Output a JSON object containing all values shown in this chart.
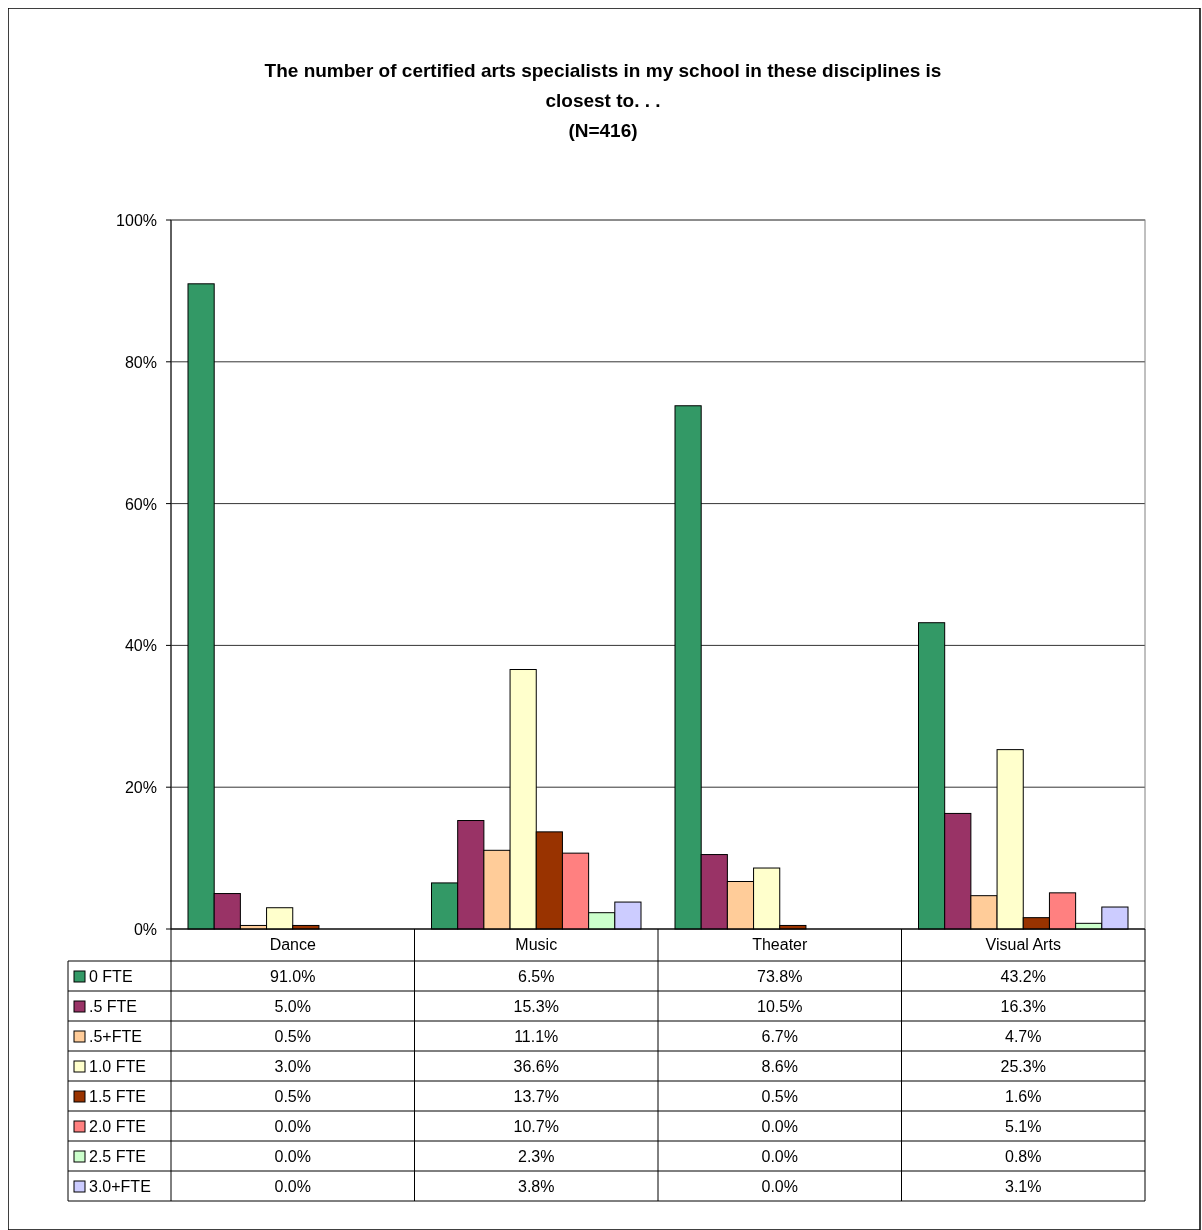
{
  "chart_data": {
    "type": "bar",
    "title": "The number of certified arts specialists in my school in these disciplines is closest to. . .",
    "subtitle": "(N=416)",
    "categories": [
      "Dance",
      "Music",
      "Theater",
      "Visual Arts"
    ],
    "series": [
      {
        "name": "0 FTE",
        "color": "#339966",
        "values": [
          91.0,
          6.5,
          73.8,
          43.2
        ],
        "value_labels": [
          "91.0%",
          "6.5%",
          "73.8%",
          "43.2%"
        ]
      },
      {
        "name": ".5 FTE",
        "color": "#993366",
        "values": [
          5.0,
          15.3,
          10.5,
          16.3
        ],
        "value_labels": [
          "5.0%",
          "15.3%",
          "10.5%",
          "16.3%"
        ]
      },
      {
        "name": ".5+FTE",
        "color": "#ffcc99",
        "values": [
          0.5,
          11.1,
          6.7,
          4.7
        ],
        "value_labels": [
          "0.5%",
          "11.1%",
          "6.7%",
          "4.7%"
        ]
      },
      {
        "name": "1.0 FTE",
        "color": "#ffffcc",
        "values": [
          3.0,
          36.6,
          8.6,
          25.3
        ],
        "value_labels": [
          "3.0%",
          "36.6%",
          "8.6%",
          "25.3%"
        ]
      },
      {
        "name": "1.5 FTE",
        "color": "#993300",
        "values": [
          0.5,
          13.7,
          0.5,
          1.6
        ],
        "value_labels": [
          "0.5%",
          "13.7%",
          "0.5%",
          "1.6%"
        ]
      },
      {
        "name": "2.0 FTE",
        "color": "#ff8080",
        "values": [
          0.0,
          10.7,
          0.0,
          5.1
        ],
        "value_labels": [
          "0.0%",
          "10.7%",
          "0.0%",
          "5.1%"
        ]
      },
      {
        "name": "2.5 FTE",
        "color": "#ccffcc",
        "values": [
          0.0,
          2.3,
          0.0,
          0.8
        ],
        "value_labels": [
          "0.0%",
          "2.3%",
          "0.0%",
          "0.8%"
        ]
      },
      {
        "name": "3.0+FTE",
        "color": "#ccccff",
        "values": [
          0.0,
          3.8,
          0.0,
          3.1
        ],
        "value_labels": [
          "0.0%",
          "3.8%",
          "0.0%",
          "3.1%"
        ]
      }
    ],
    "ylim": [
      0,
      100
    ],
    "yticks": [
      {
        "value": 0,
        "label": "0%"
      },
      {
        "value": 20,
        "label": "20%"
      },
      {
        "value": 40,
        "label": "40%"
      },
      {
        "value": 60,
        "label": "60%"
      },
      {
        "value": 80,
        "label": "80%"
      },
      {
        "value": 100,
        "label": "100%"
      }
    ],
    "grid": "y",
    "legend": "bottom left"
  }
}
